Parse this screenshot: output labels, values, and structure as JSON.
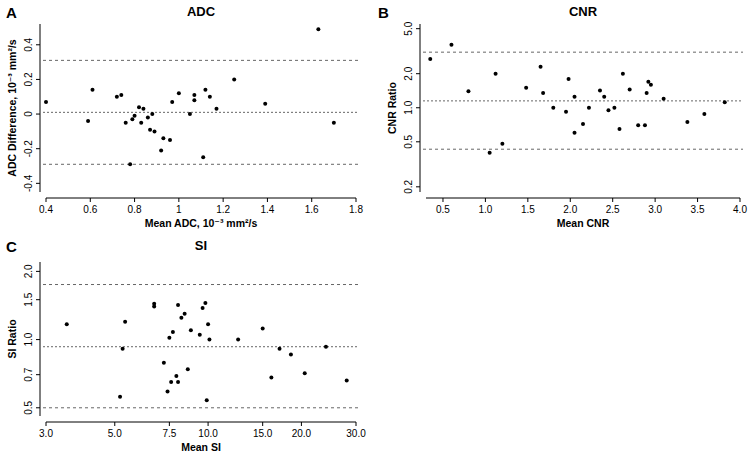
{
  "chart_data": [
    {
      "type": "scatter",
      "label": "A",
      "title": "ADC",
      "x_label": "Mean ADC, 10⁻³ mm²/s",
      "y_label": "ADC Difference, 10⁻³ mm²/s",
      "color": "#000000",
      "marker": "circle",
      "grid": false,
      "x": [
        0.4,
        0.59,
        0.61,
        0.72,
        0.74,
        0.76,
        0.78,
        0.79,
        0.8,
        0.82,
        0.83,
        0.84,
        0.86,
        0.87,
        0.88,
        0.89,
        0.92,
        0.93,
        0.96,
        0.97,
        1.0,
        1.05,
        1.07,
        1.07,
        1.11,
        1.12,
        1.14,
        1.17,
        1.25,
        1.39,
        1.63,
        1.7
      ],
      "values": [
        0.07,
        -0.04,
        0.14,
        0.1,
        0.11,
        -0.05,
        -0.29,
        -0.03,
        -0.01,
        0.04,
        -0.05,
        0.03,
        -0.02,
        -0.09,
        0.0,
        -0.1,
        -0.21,
        -0.14,
        -0.15,
        0.07,
        0.12,
        0.0,
        0.08,
        0.11,
        -0.25,
        0.14,
        0.1,
        0.03,
        0.2,
        0.06,
        0.49,
        -0.05
      ],
      "reference_lines": [
        0.01,
        0.31,
        -0.29
      ],
      "xlim": [
        0.4,
        1.8
      ],
      "ylim": [
        -0.45,
        0.52
      ],
      "xticks": [
        0.4,
        0.6,
        0.8,
        1.0,
        1.2,
        1.4,
        1.6,
        1.8
      ],
      "yticks": [
        -0.4,
        -0.2,
        0,
        0.2,
        0.4
      ]
    },
    {
      "type": "scatter",
      "label": "B",
      "title": "CNR",
      "x_label": "Mean CNR",
      "y_label": "CNR Ratio",
      "color": "#000000",
      "marker": "circle",
      "grid": false,
      "log": "y",
      "x": [
        0.35,
        0.6,
        0.8,
        1.05,
        1.12,
        1.2,
        1.48,
        1.65,
        1.68,
        1.8,
        1.95,
        1.98,
        2.05,
        2.05,
        2.15,
        2.22,
        2.35,
        2.4,
        2.45,
        2.52,
        2.58,
        2.62,
        2.7,
        2.8,
        2.88,
        2.9,
        2.92,
        2.95,
        3.1,
        3.38,
        3.58,
        3.82
      ],
      "values": [
        2.7,
        3.6,
        1.4,
        0.4,
        2.0,
        0.48,
        1.5,
        2.3,
        1.35,
        1.0,
        0.92,
        1.8,
        1.25,
        0.6,
        0.72,
        1.0,
        1.42,
        1.25,
        0.95,
        1.0,
        0.65,
        2.0,
        1.45,
        0.7,
        0.7,
        1.35,
        1.7,
        1.6,
        1.2,
        0.75,
        0.88,
        1.12
      ],
      "reference_lines": [
        1.15,
        3.1,
        0.43
      ],
      "xlim": [
        0.3,
        4.0
      ],
      "ylim": [
        0.18,
        5.5
      ],
      "xticks": [
        0.5,
        {
          "value": 1,
          "label": "1.0"
        },
        1.5,
        {
          "value": 2,
          "label": "2.0"
        },
        2.5,
        {
          "value": 3,
          "label": "3.0"
        },
        3.5,
        {
          "value": 4,
          "label": "4.0"
        }
      ],
      "yticks": [
        0.2,
        0.5,
        {
          "value": 1,
          "label": "1.0"
        },
        {
          "value": 2,
          "label": "2.0"
        },
        {
          "value": 5,
          "label": "5.0"
        }
      ]
    },
    {
      "type": "scatter",
      "label": "C",
      "title": "SI",
      "x_label": "Mean SI",
      "y_label": "SI Ratio",
      "color": "#000000",
      "marker": "circle",
      "grid": false,
      "log": true,
      "x": [
        3.5,
        5.2,
        5.3,
        5.4,
        6.7,
        6.7,
        7.2,
        7.4,
        7.5,
        7.6,
        7.7,
        7.9,
        8.0,
        8.0,
        8.2,
        8.4,
        8.6,
        8.8,
        9.4,
        9.6,
        9.8,
        9.9,
        10,
        10.1,
        12.5,
        15,
        16,
        17,
        18.5,
        20.5,
        24,
        28
      ],
      "values": [
        1.17,
        0.56,
        0.91,
        1.2,
        1.4,
        1.44,
        0.79,
        0.59,
        1.02,
        0.65,
        1.08,
        0.69,
        1.42,
        0.65,
        1.25,
        1.3,
        0.74,
        1.1,
        1.05,
        1.38,
        1.45,
        0.54,
        1.17,
        1.0,
        1.0,
        1.12,
        0.68,
        0.91,
        0.86,
        0.71,
        0.93,
        0.66
      ],
      "reference_lines": [
        0.93,
        1.75,
        0.5
      ],
      "xlim": [
        3,
        30
      ],
      "ylim": [
        0.46,
        2.2
      ],
      "xticks": [
        {
          "value": 3,
          "label": "3.0"
        },
        {
          "value": 5,
          "label": "5.0"
        },
        7.5,
        {
          "value": 10,
          "label": "10.0"
        },
        {
          "value": 15,
          "label": "15.0"
        },
        {
          "value": 20,
          "label": "20.0"
        },
        {
          "value": 30,
          "label": "30.0"
        }
      ],
      "yticks": [
        0.5,
        0.7,
        {
          "value": 1,
          "label": "1.0"
        },
        1.5,
        {
          "value": 2,
          "label": "2.0"
        }
      ]
    }
  ]
}
